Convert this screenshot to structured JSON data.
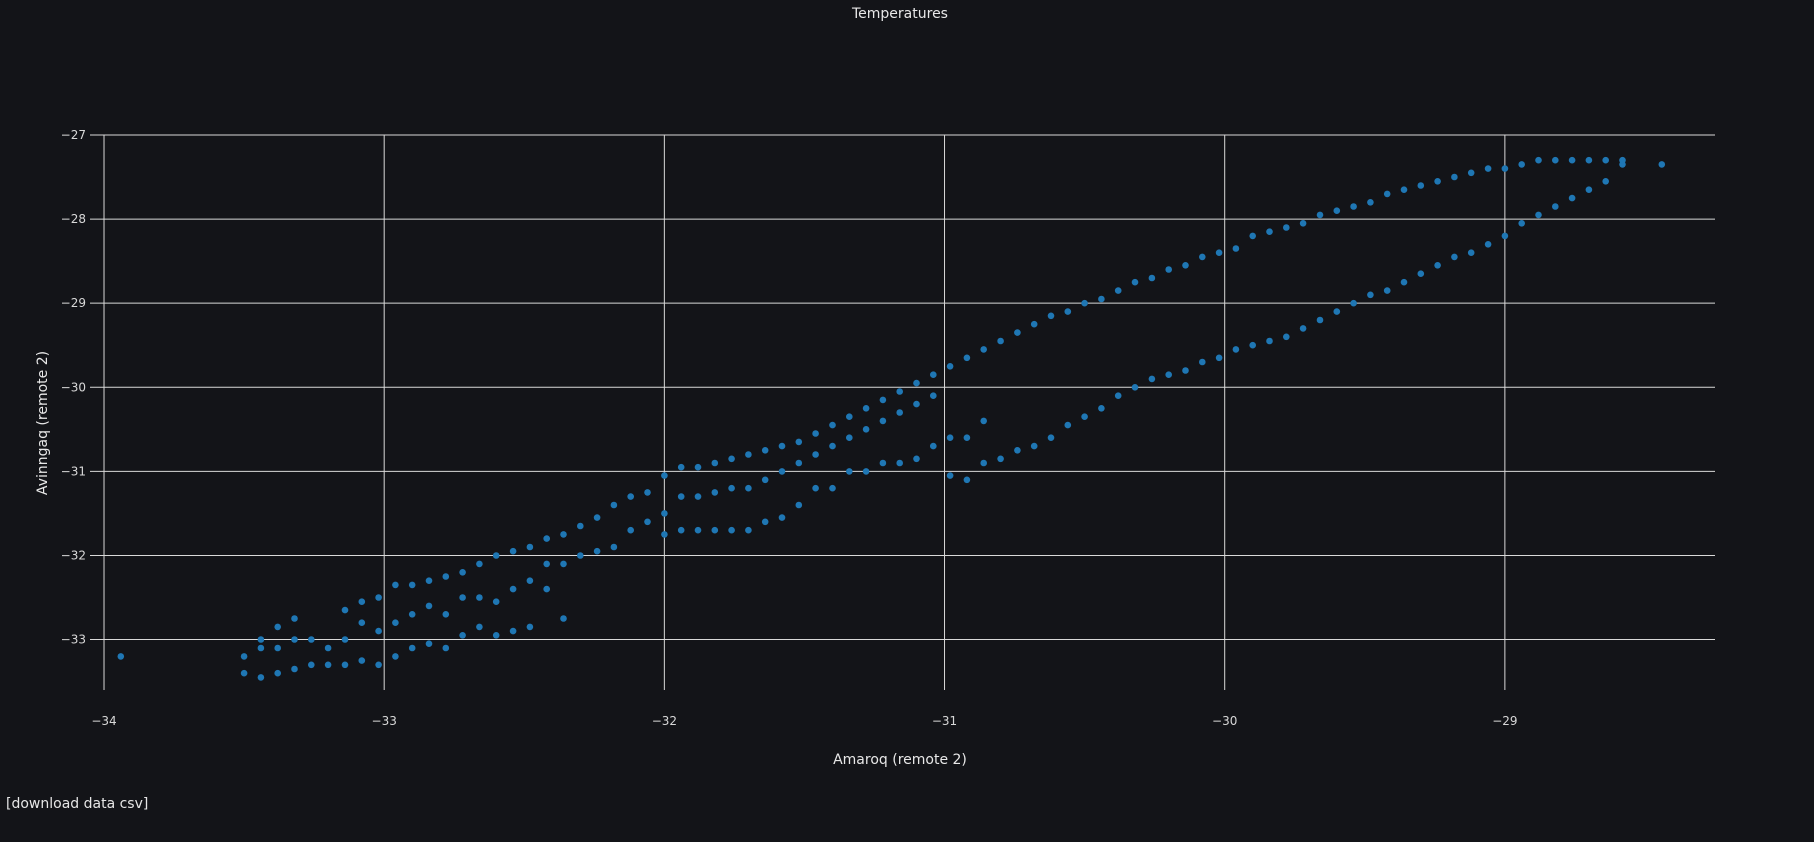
{
  "download_label": "[download data csv]",
  "chart_data": {
    "type": "scatter",
    "title": "Temperatures",
    "xlabel": "Amaroq        (remote 2)",
    "ylabel": "Avinngaq        (remote 2)",
    "xlim": [
      -34.05,
      -28.25
    ],
    "ylim": [
      -33.6,
      -27.0
    ],
    "x_ticks": [
      -34,
      -33,
      -32,
      -31,
      -30,
      -29
    ],
    "y_ticks": [
      -27,
      -28,
      -29,
      -30,
      -31,
      -32,
      -33
    ],
    "x_tick_labels": [
      "−34",
      "−33",
      "−32",
      "−31",
      "−30",
      "−29"
    ],
    "y_tick_labels": [
      "−27",
      "−28",
      "−29",
      "−30",
      "−31",
      "−32",
      "−33"
    ],
    "grid": true,
    "marker_color": "#1f77b4",
    "background": "#131418",
    "series": [
      {
        "points": [
          [
            -33.94,
            -33.2
          ],
          [
            -33.5,
            -33.4
          ],
          [
            -33.5,
            -33.2
          ],
          [
            -33.44,
            -33.45
          ],
          [
            -33.44,
            -33.1
          ],
          [
            -33.44,
            -33.0
          ],
          [
            -33.38,
            -33.4
          ],
          [
            -33.38,
            -33.1
          ],
          [
            -33.38,
            -32.85
          ],
          [
            -33.32,
            -33.35
          ],
          [
            -33.32,
            -33.0
          ],
          [
            -33.32,
            -32.75
          ],
          [
            -33.26,
            -33.3
          ],
          [
            -33.26,
            -33.0
          ],
          [
            -33.2,
            -33.3
          ],
          [
            -33.2,
            -33.1
          ],
          [
            -33.14,
            -33.3
          ],
          [
            -33.14,
            -33.0
          ],
          [
            -33.14,
            -32.65
          ],
          [
            -33.08,
            -33.25
          ],
          [
            -33.08,
            -32.8
          ],
          [
            -33.08,
            -32.55
          ],
          [
            -33.02,
            -33.3
          ],
          [
            -33.02,
            -32.9
          ],
          [
            -33.02,
            -32.5
          ],
          [
            -32.96,
            -33.2
          ],
          [
            -32.96,
            -32.8
          ],
          [
            -32.96,
            -32.35
          ],
          [
            -32.9,
            -33.1
          ],
          [
            -32.9,
            -32.7
          ],
          [
            -32.9,
            -32.35
          ],
          [
            -32.84,
            -33.05
          ],
          [
            -32.84,
            -32.6
          ],
          [
            -32.84,
            -32.3
          ],
          [
            -32.78,
            -33.1
          ],
          [
            -32.78,
            -32.7
          ],
          [
            -32.78,
            -32.25
          ],
          [
            -32.72,
            -32.95
          ],
          [
            -32.72,
            -32.5
          ],
          [
            -32.72,
            -32.2
          ],
          [
            -32.66,
            -32.85
          ],
          [
            -32.66,
            -32.5
          ],
          [
            -32.66,
            -32.1
          ],
          [
            -32.6,
            -32.95
          ],
          [
            -32.6,
            -32.55
          ],
          [
            -32.6,
            -32.0
          ],
          [
            -32.54,
            -32.9
          ],
          [
            -32.54,
            -32.4
          ],
          [
            -32.54,
            -31.95
          ],
          [
            -32.48,
            -32.85
          ],
          [
            -32.48,
            -32.3
          ],
          [
            -32.48,
            -31.9
          ],
          [
            -32.42,
            -32.4
          ],
          [
            -32.42,
            -32.1
          ],
          [
            -32.42,
            -31.8
          ],
          [
            -32.36,
            -32.1
          ],
          [
            -32.36,
            -32.75
          ],
          [
            -32.36,
            -31.75
          ],
          [
            -32.3,
            -32.0
          ],
          [
            -32.3,
            -31.65
          ],
          [
            -32.24,
            -31.95
          ],
          [
            -32.24,
            -31.55
          ],
          [
            -32.18,
            -31.9
          ],
          [
            -32.18,
            -31.4
          ],
          [
            -32.12,
            -31.7
          ],
          [
            -32.12,
            -31.3
          ],
          [
            -32.06,
            -31.6
          ],
          [
            -32.06,
            -31.25
          ],
          [
            -32.0,
            -31.75
          ],
          [
            -32.0,
            -31.5
          ],
          [
            -32.0,
            -31.05
          ],
          [
            -31.94,
            -31.7
          ],
          [
            -31.94,
            -31.3
          ],
          [
            -31.94,
            -30.95
          ],
          [
            -31.88,
            -31.7
          ],
          [
            -31.88,
            -31.3
          ],
          [
            -31.88,
            -30.95
          ],
          [
            -31.82,
            -31.7
          ],
          [
            -31.82,
            -31.25
          ],
          [
            -31.82,
            -30.9
          ],
          [
            -31.76,
            -31.7
          ],
          [
            -31.76,
            -31.2
          ],
          [
            -31.76,
            -30.85
          ],
          [
            -31.7,
            -31.7
          ],
          [
            -31.7,
            -31.2
          ],
          [
            -31.7,
            -30.8
          ],
          [
            -31.64,
            -31.6
          ],
          [
            -31.64,
            -31.1
          ],
          [
            -31.64,
            -30.75
          ],
          [
            -31.58,
            -31.55
          ],
          [
            -31.58,
            -31.0
          ],
          [
            -31.58,
            -30.7
          ],
          [
            -31.52,
            -31.4
          ],
          [
            -31.52,
            -30.9
          ],
          [
            -31.52,
            -30.65
          ],
          [
            -31.46,
            -31.2
          ],
          [
            -31.46,
            -30.8
          ],
          [
            -31.46,
            -30.55
          ],
          [
            -31.4,
            -31.2
          ],
          [
            -31.4,
            -30.7
          ],
          [
            -31.4,
            -30.45
          ],
          [
            -31.34,
            -31.0
          ],
          [
            -31.34,
            -30.6
          ],
          [
            -31.34,
            -30.35
          ],
          [
            -31.28,
            -31.0
          ],
          [
            -31.28,
            -30.5
          ],
          [
            -31.28,
            -30.25
          ],
          [
            -31.22,
            -30.9
          ],
          [
            -31.22,
            -30.4
          ],
          [
            -31.22,
            -30.15
          ],
          [
            -31.16,
            -30.9
          ],
          [
            -31.16,
            -30.3
          ],
          [
            -31.16,
            -30.05
          ],
          [
            -31.1,
            -30.85
          ],
          [
            -31.1,
            -30.2
          ],
          [
            -31.1,
            -29.95
          ],
          [
            -31.04,
            -30.7
          ],
          [
            -31.04,
            -30.1
          ],
          [
            -31.04,
            -29.85
          ],
          [
            -30.98,
            -31.05
          ],
          [
            -30.98,
            -30.6
          ],
          [
            -30.98,
            -29.75
          ],
          [
            -30.92,
            -31.1
          ],
          [
            -30.92,
            -30.6
          ],
          [
            -30.92,
            -29.65
          ],
          [
            -30.86,
            -30.9
          ],
          [
            -30.86,
            -30.4
          ],
          [
            -30.86,
            -29.55
          ],
          [
            -30.8,
            -30.85
          ],
          [
            -30.8,
            -29.45
          ],
          [
            -30.74,
            -30.75
          ],
          [
            -30.74,
            -29.35
          ],
          [
            -30.68,
            -30.7
          ],
          [
            -30.68,
            -29.25
          ],
          [
            -30.62,
            -30.6
          ],
          [
            -30.62,
            -29.15
          ],
          [
            -30.56,
            -30.45
          ],
          [
            -30.56,
            -29.1
          ],
          [
            -30.5,
            -30.35
          ],
          [
            -30.5,
            -29.0
          ],
          [
            -30.44,
            -30.25
          ],
          [
            -30.44,
            -28.95
          ],
          [
            -30.38,
            -30.1
          ],
          [
            -30.38,
            -28.85
          ],
          [
            -30.32,
            -30.0
          ],
          [
            -30.32,
            -28.75
          ],
          [
            -30.26,
            -29.9
          ],
          [
            -30.26,
            -28.7
          ],
          [
            -30.2,
            -29.85
          ],
          [
            -30.2,
            -28.6
          ],
          [
            -30.14,
            -29.8
          ],
          [
            -30.14,
            -28.55
          ],
          [
            -30.08,
            -29.7
          ],
          [
            -30.08,
            -28.45
          ],
          [
            -30.02,
            -29.65
          ],
          [
            -30.02,
            -28.4
          ],
          [
            -29.96,
            -29.55
          ],
          [
            -29.96,
            -28.35
          ],
          [
            -29.9,
            -29.5
          ],
          [
            -29.9,
            -28.2
          ],
          [
            -29.84,
            -29.45
          ],
          [
            -29.84,
            -28.15
          ],
          [
            -29.78,
            -29.4
          ],
          [
            -29.78,
            -28.1
          ],
          [
            -29.72,
            -29.3
          ],
          [
            -29.72,
            -28.05
          ],
          [
            -29.66,
            -29.2
          ],
          [
            -29.66,
            -27.95
          ],
          [
            -29.6,
            -29.1
          ],
          [
            -29.6,
            -27.9
          ],
          [
            -29.54,
            -29.0
          ],
          [
            -29.54,
            -27.85
          ],
          [
            -29.48,
            -28.9
          ],
          [
            -29.48,
            -27.8
          ],
          [
            -29.42,
            -28.85
          ],
          [
            -29.42,
            -27.7
          ],
          [
            -29.36,
            -28.75
          ],
          [
            -29.36,
            -27.65
          ],
          [
            -29.3,
            -28.65
          ],
          [
            -29.3,
            -27.6
          ],
          [
            -29.24,
            -28.55
          ],
          [
            -29.24,
            -27.55
          ],
          [
            -29.18,
            -28.45
          ],
          [
            -29.18,
            -27.5
          ],
          [
            -29.12,
            -28.4
          ],
          [
            -29.12,
            -27.45
          ],
          [
            -29.06,
            -28.3
          ],
          [
            -29.06,
            -27.4
          ],
          [
            -29.0,
            -28.2
          ],
          [
            -29.0,
            -27.4
          ],
          [
            -28.94,
            -28.05
          ],
          [
            -28.94,
            -27.35
          ],
          [
            -28.88,
            -27.95
          ],
          [
            -28.88,
            -27.3
          ],
          [
            -28.82,
            -27.85
          ],
          [
            -28.82,
            -27.3
          ],
          [
            -28.76,
            -27.75
          ],
          [
            -28.76,
            -27.3
          ],
          [
            -28.7,
            -27.65
          ],
          [
            -28.7,
            -27.3
          ],
          [
            -28.64,
            -27.55
          ],
          [
            -28.64,
            -27.3
          ],
          [
            -28.58,
            -27.35
          ],
          [
            -28.58,
            -27.3
          ],
          [
            -28.44,
            -27.35
          ]
        ]
      }
    ]
  }
}
